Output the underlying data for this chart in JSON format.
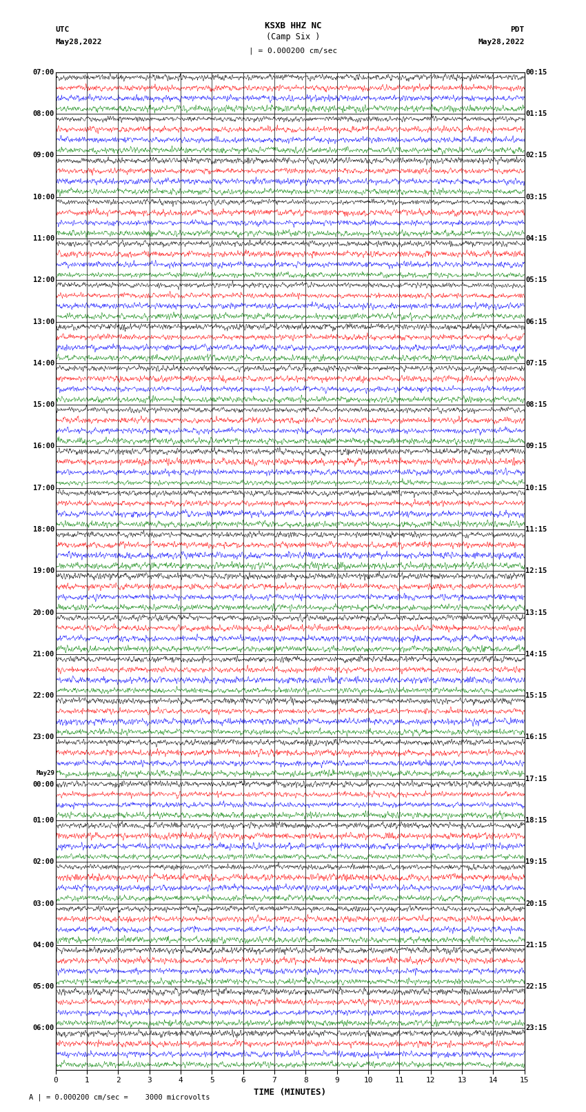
{
  "title_line1": "KSXB HHZ NC",
  "title_line2": "(Camp Six )",
  "title_scale": "| = 0.000200 cm/sec",
  "label_left_top": "UTC",
  "label_left_date": "May28,2022",
  "label_right_top": "PDT",
  "label_right_date": "May28,2022",
  "xlabel": "TIME (MINUTES)",
  "footer": "A | = 0.000200 cm/sec =    3000 microvolts",
  "utc_labels": [
    "07:00",
    "08:00",
    "09:00",
    "10:00",
    "11:00",
    "12:00",
    "13:00",
    "14:00",
    "15:00",
    "16:00",
    "17:00",
    "18:00",
    "19:00",
    "20:00",
    "21:00",
    "22:00",
    "23:00",
    "May29\n00:00",
    "01:00",
    "02:00",
    "03:00",
    "04:00",
    "05:00",
    "06:00"
  ],
  "pdt_labels": [
    "00:15",
    "01:15",
    "02:15",
    "03:15",
    "04:15",
    "05:15",
    "06:15",
    "07:15",
    "08:15",
    "09:15",
    "10:15",
    "11:15",
    "12:15",
    "13:15",
    "14:15",
    "15:15",
    "16:15",
    "17:15",
    "18:15",
    "19:15",
    "20:15",
    "21:15",
    "22:15",
    "23:15"
  ],
  "n_hours": 24,
  "traces_per_hour": 4,
  "colors_cycle": [
    "black",
    "red",
    "blue",
    "green"
  ],
  "n_points": 1800,
  "x_min": 0,
  "x_max": 15,
  "background_color": "white",
  "seed": 42,
  "amplitude_by_hour": [
    0.08,
    0.1,
    0.06,
    0.04,
    0.03,
    0.12,
    0.18,
    0.2,
    0.22,
    0.18,
    0.2,
    0.22,
    0.24,
    0.26,
    0.28,
    0.35,
    0.5,
    0.65,
    0.8,
    0.9,
    1.0,
    1.1,
    1.2,
    1.3
  ],
  "noise_freq_by_hour": [
    2.0,
    2.0,
    2.0,
    2.0,
    0.5,
    2.0,
    3.0,
    3.0,
    3.0,
    3.0,
    3.0,
    3.0,
    3.0,
    3.0,
    3.5,
    4.0,
    5.0,
    6.0,
    7.0,
    8.0,
    9.0,
    10.0,
    11.0,
    12.0
  ]
}
